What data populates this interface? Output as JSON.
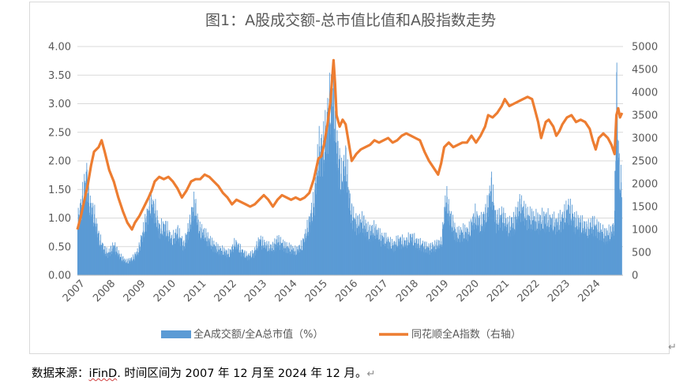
{
  "chart_data": {
    "type": "bar+line",
    "title": "图1：A股成交额-总市值比值和A股指数走势",
    "x_ticks": [
      "2007",
      "2008",
      "2009",
      "2010",
      "2011",
      "2012",
      "2013",
      "2014",
      "2015",
      "2016",
      "2017",
      "2018",
      "2019",
      "2020",
      "2021",
      "2022",
      "2023",
      "2024"
    ],
    "y_left": {
      "ticks": [
        "0.00",
        "0.50",
        "1.00",
        "1.50",
        "2.00",
        "2.50",
        "3.00",
        "3.50",
        "4.00"
      ],
      "lim": [
        0,
        4
      ]
    },
    "y_right": {
      "ticks": [
        "0",
        "500",
        "1000",
        "1500",
        "2000",
        "2500",
        "3000",
        "3500",
        "4000",
        "4500",
        "5000"
      ],
      "lim": [
        0,
        5000
      ]
    },
    "legend": {
      "placement": "bottom"
    },
    "colors": {
      "bar": "#5b9bd5",
      "line": "#ed7d31"
    },
    "series": [
      {
        "name": "全A成交额/全A总市值（%）",
        "kind": "bar",
        "axis": "left",
        "points": [
          [
            2007.0,
            1.0
          ],
          [
            2007.15,
            1.4
          ],
          [
            2007.3,
            1.85
          ],
          [
            2007.4,
            1.3
          ],
          [
            2007.55,
            1.1
          ],
          [
            2007.7,
            0.7
          ],
          [
            2007.85,
            0.5
          ],
          [
            2008.0,
            0.4
          ],
          [
            2008.2,
            0.55
          ],
          [
            2008.4,
            0.35
          ],
          [
            2008.6,
            0.25
          ],
          [
            2008.8,
            0.3
          ],
          [
            2009.0,
            0.45
          ],
          [
            2009.2,
            0.9
          ],
          [
            2009.4,
            1.35
          ],
          [
            2009.55,
            1.2
          ],
          [
            2009.7,
            0.85
          ],
          [
            2009.9,
            0.9
          ],
          [
            2010.1,
            0.65
          ],
          [
            2010.3,
            0.8
          ],
          [
            2010.5,
            0.55
          ],
          [
            2010.7,
            0.95
          ],
          [
            2010.85,
            1.35
          ],
          [
            2011.0,
            0.85
          ],
          [
            2011.2,
            0.75
          ],
          [
            2011.4,
            0.6
          ],
          [
            2011.6,
            0.5
          ],
          [
            2011.8,
            0.45
          ],
          [
            2012.0,
            0.4
          ],
          [
            2012.2,
            0.6
          ],
          [
            2012.4,
            0.45
          ],
          [
            2012.6,
            0.35
          ],
          [
            2012.8,
            0.4
          ],
          [
            2013.0,
            0.65
          ],
          [
            2013.2,
            0.55
          ],
          [
            2013.4,
            0.5
          ],
          [
            2013.6,
            0.65
          ],
          [
            2013.8,
            0.55
          ],
          [
            2014.0,
            0.5
          ],
          [
            2014.2,
            0.45
          ],
          [
            2014.4,
            0.55
          ],
          [
            2014.6,
            0.9
          ],
          [
            2014.8,
            1.35
          ],
          [
            2014.95,
            2.3
          ],
          [
            2015.1,
            2.35
          ],
          [
            2015.3,
            3.1
          ],
          [
            2015.45,
            3.35
          ],
          [
            2015.55,
            2.4
          ],
          [
            2015.7,
            1.8
          ],
          [
            2015.85,
            2.1
          ],
          [
            2016.0,
            1.2
          ],
          [
            2016.2,
            0.95
          ],
          [
            2016.4,
            1.0
          ],
          [
            2016.6,
            0.8
          ],
          [
            2016.8,
            0.85
          ],
          [
            2017.0,
            0.7
          ],
          [
            2017.2,
            0.65
          ],
          [
            2017.4,
            0.55
          ],
          [
            2017.6,
            0.65
          ],
          [
            2017.8,
            0.6
          ],
          [
            2018.0,
            0.7
          ],
          [
            2018.2,
            0.6
          ],
          [
            2018.4,
            0.55
          ],
          [
            2018.6,
            0.5
          ],
          [
            2018.8,
            0.55
          ],
          [
            2019.0,
            0.6
          ],
          [
            2019.15,
            1.45
          ],
          [
            2019.3,
            1.05
          ],
          [
            2019.5,
            0.75
          ],
          [
            2019.7,
            0.8
          ],
          [
            2019.9,
            0.8
          ],
          [
            2020.1,
            1.1
          ],
          [
            2020.3,
            0.95
          ],
          [
            2020.5,
            1.2
          ],
          [
            2020.65,
            1.65
          ],
          [
            2020.8,
            1.0
          ],
          [
            2021.0,
            1.1
          ],
          [
            2021.2,
            0.9
          ],
          [
            2021.4,
            1.0
          ],
          [
            2021.6,
            1.3
          ],
          [
            2021.8,
            1.1
          ],
          [
            2022.0,
            1.05
          ],
          [
            2022.2,
            1.0
          ],
          [
            2022.4,
            1.05
          ],
          [
            2022.6,
            1.0
          ],
          [
            2022.8,
            0.95
          ],
          [
            2023.0,
            1.05
          ],
          [
            2023.2,
            1.25
          ],
          [
            2023.4,
            1.0
          ],
          [
            2023.6,
            0.95
          ],
          [
            2023.8,
            0.85
          ],
          [
            2024.0,
            0.95
          ],
          [
            2024.2,
            0.85
          ],
          [
            2024.4,
            0.75
          ],
          [
            2024.6,
            0.8
          ],
          [
            2024.7,
            0.9
          ],
          [
            2024.78,
            3.55
          ],
          [
            2024.82,
            2.5
          ],
          [
            2024.88,
            1.8
          ],
          [
            2024.95,
            1.6
          ]
        ]
      },
      {
        "name": "同花顺全A指数（右轴）",
        "kind": "line",
        "axis": "right",
        "points": [
          [
            2007.0,
            1000
          ],
          [
            2007.12,
            1300
          ],
          [
            2007.25,
            1700
          ],
          [
            2007.35,
            2000
          ],
          [
            2007.45,
            2400
          ],
          [
            2007.55,
            2700
          ],
          [
            2007.7,
            2800
          ],
          [
            2007.8,
            2950
          ],
          [
            2007.9,
            2700
          ],
          [
            2008.05,
            2300
          ],
          [
            2008.2,
            2050
          ],
          [
            2008.35,
            1700
          ],
          [
            2008.5,
            1400
          ],
          [
            2008.65,
            1150
          ],
          [
            2008.8,
            1000
          ],
          [
            2008.9,
            1150
          ],
          [
            2009.05,
            1300
          ],
          [
            2009.2,
            1500
          ],
          [
            2009.35,
            1700
          ],
          [
            2009.45,
            1850
          ],
          [
            2009.55,
            2050
          ],
          [
            2009.7,
            2150
          ],
          [
            2009.85,
            2100
          ],
          [
            2010.0,
            2150
          ],
          [
            2010.15,
            2050
          ],
          [
            2010.3,
            1900
          ],
          [
            2010.45,
            1700
          ],
          [
            2010.6,
            1850
          ],
          [
            2010.75,
            2050
          ],
          [
            2010.9,
            2100
          ],
          [
            2011.05,
            2100
          ],
          [
            2011.2,
            2200
          ],
          [
            2011.35,
            2150
          ],
          [
            2011.5,
            2050
          ],
          [
            2011.65,
            1950
          ],
          [
            2011.8,
            1800
          ],
          [
            2011.95,
            1700
          ],
          [
            2012.1,
            1550
          ],
          [
            2012.25,
            1650
          ],
          [
            2012.4,
            1600
          ],
          [
            2012.55,
            1550
          ],
          [
            2012.7,
            1500
          ],
          [
            2012.85,
            1550
          ],
          [
            2013.0,
            1650
          ],
          [
            2013.15,
            1750
          ],
          [
            2013.3,
            1650
          ],
          [
            2013.45,
            1500
          ],
          [
            2013.6,
            1650
          ],
          [
            2013.75,
            1750
          ],
          [
            2013.9,
            1700
          ],
          [
            2014.05,
            1650
          ],
          [
            2014.2,
            1700
          ],
          [
            2014.35,
            1650
          ],
          [
            2014.5,
            1700
          ],
          [
            2014.65,
            1800
          ],
          [
            2014.8,
            2100
          ],
          [
            2014.95,
            2550
          ],
          [
            2015.05,
            2600
          ],
          [
            2015.15,
            2900
          ],
          [
            2015.25,
            3300
          ],
          [
            2015.35,
            3800
          ],
          [
            2015.45,
            4700
          ],
          [
            2015.5,
            4200
          ],
          [
            2015.55,
            3500
          ],
          [
            2015.65,
            3250
          ],
          [
            2015.75,
            3400
          ],
          [
            2015.85,
            3300
          ],
          [
            2015.95,
            2900
          ],
          [
            2016.05,
            2500
          ],
          [
            2016.2,
            2650
          ],
          [
            2016.35,
            2750
          ],
          [
            2016.5,
            2800
          ],
          [
            2016.65,
            2850
          ],
          [
            2016.8,
            2950
          ],
          [
            2016.95,
            2900
          ],
          [
            2017.1,
            2950
          ],
          [
            2017.25,
            3000
          ],
          [
            2017.4,
            2900
          ],
          [
            2017.55,
            2950
          ],
          [
            2017.7,
            3050
          ],
          [
            2017.85,
            3100
          ],
          [
            2018.0,
            3050
          ],
          [
            2018.15,
            3000
          ],
          [
            2018.3,
            2950
          ],
          [
            2018.45,
            2700
          ],
          [
            2018.6,
            2500
          ],
          [
            2018.75,
            2350
          ],
          [
            2018.9,
            2200
          ],
          [
            2019.0,
            2450
          ],
          [
            2019.1,
            2800
          ],
          [
            2019.25,
            2900
          ],
          [
            2019.4,
            2800
          ],
          [
            2019.55,
            2850
          ],
          [
            2019.7,
            2900
          ],
          [
            2019.85,
            2900
          ],
          [
            2020.0,
            3050
          ],
          [
            2020.15,
            2900
          ],
          [
            2020.3,
            3050
          ],
          [
            2020.45,
            3250
          ],
          [
            2020.55,
            3500
          ],
          [
            2020.7,
            3450
          ],
          [
            2020.85,
            3550
          ],
          [
            2021.0,
            3700
          ],
          [
            2021.1,
            3850
          ],
          [
            2021.25,
            3700
          ],
          [
            2021.4,
            3750
          ],
          [
            2021.55,
            3800
          ],
          [
            2021.7,
            3850
          ],
          [
            2021.85,
            3900
          ],
          [
            2022.0,
            3850
          ],
          [
            2022.1,
            3600
          ],
          [
            2022.2,
            3350
          ],
          [
            2022.3,
            3000
          ],
          [
            2022.45,
            3350
          ],
          [
            2022.55,
            3400
          ],
          [
            2022.7,
            3250
          ],
          [
            2022.8,
            3050
          ],
          [
            2022.9,
            3150
          ],
          [
            2023.0,
            3300
          ],
          [
            2023.15,
            3450
          ],
          [
            2023.3,
            3500
          ],
          [
            2023.45,
            3350
          ],
          [
            2023.6,
            3400
          ],
          [
            2023.75,
            3350
          ],
          [
            2023.9,
            3200
          ],
          [
            2024.0,
            2950
          ],
          [
            2024.1,
            2750
          ],
          [
            2024.2,
            3000
          ],
          [
            2024.35,
            3100
          ],
          [
            2024.5,
            3000
          ],
          [
            2024.62,
            2850
          ],
          [
            2024.72,
            2650
          ],
          [
            2024.78,
            3500
          ],
          [
            2024.84,
            3650
          ],
          [
            2024.9,
            3450
          ],
          [
            2024.97,
            3550
          ]
        ]
      }
    ]
  },
  "footer": {
    "prefix": "数据来源：",
    "source": "iFinD",
    "text": ". 时间区间为 2007 年 12 月至 2024 年 12 月。",
    "para_mark": "↵",
    "frame_mark": "↵"
  }
}
